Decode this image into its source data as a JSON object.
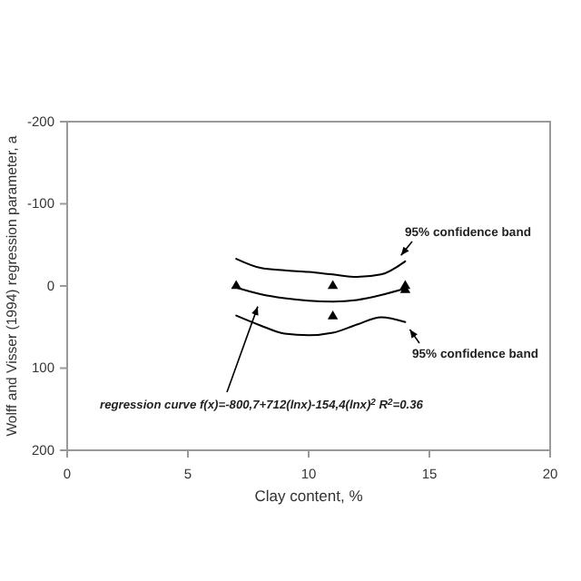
{
  "chart_data": {
    "type": "scatter",
    "xlabel": "Clay content, %",
    "ylabel": "Wolff and Visser (1994) regression parameter, a",
    "xlim": [
      0,
      20
    ],
    "xticks": [
      0,
      5,
      10,
      15,
      20
    ],
    "ylim": [
      200,
      -200
    ],
    "yticks": [
      -200,
      -100,
      0,
      100,
      200
    ],
    "marker": "triangle",
    "grid": false,
    "series": [
      {
        "color": "#000000",
        "x": [
          7,
          11,
          11,
          14,
          14
        ],
        "values": [
          0,
          0,
          37,
          0,
          5
        ]
      },
      {
        "type": "line",
        "color": "#000000",
        "line_style": "solid",
        "marker": "none",
        "x": [
          7,
          8,
          9,
          10,
          11,
          12,
          13,
          14
        ],
        "values": [
          2,
          10,
          15,
          18,
          19,
          17,
          11,
          3
        ]
      },
      {
        "type": "line",
        "color": "#000000",
        "line_style": "solid",
        "marker": "none",
        "x": [
          7,
          8,
          9,
          10,
          11,
          12,
          13,
          14
        ],
        "values": [
          -33,
          -22,
          -19,
          -17,
          -14,
          -11,
          -14,
          -30
        ]
      },
      {
        "type": "line",
        "color": "#000000",
        "line_style": "solid",
        "marker": "none",
        "x": [
          7,
          8,
          9,
          10,
          11,
          12,
          13,
          14
        ],
        "values": [
          36,
          48,
          58,
          60,
          57,
          47,
          38,
          44
        ]
      }
    ],
    "annotations": [
      "95% confidence band",
      "95% confidence band",
      "regression curve f(x)=-800,7+712(lnx)-154,4(lnx)$^{2}$  R$^{2}$=0.36"
    ]
  }
}
